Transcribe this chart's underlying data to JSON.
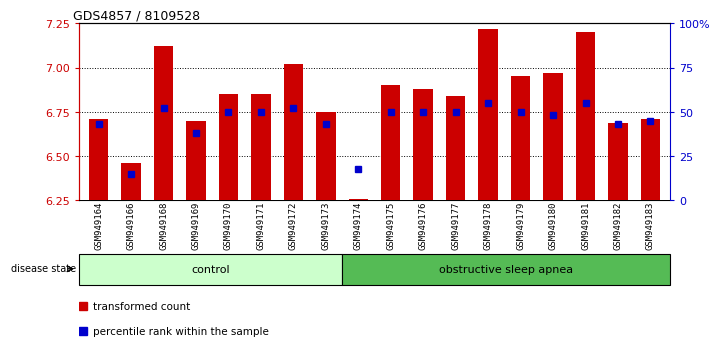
{
  "title": "GDS4857 / 8109528",
  "samples": [
    "GSM949164",
    "GSM949166",
    "GSM949168",
    "GSM949169",
    "GSM949170",
    "GSM949171",
    "GSM949172",
    "GSM949173",
    "GSM949174",
    "GSM949175",
    "GSM949176",
    "GSM949177",
    "GSM949178",
    "GSM949179",
    "GSM949180",
    "GSM949181",
    "GSM949182",
    "GSM949183"
  ],
  "red_values": [
    6.71,
    6.46,
    7.12,
    6.7,
    6.85,
    6.85,
    7.02,
    6.75,
    6.26,
    6.9,
    6.88,
    6.84,
    7.22,
    6.95,
    6.97,
    7.2,
    6.69,
    6.71
  ],
  "blue_percentiles": [
    43,
    15,
    52,
    38,
    50,
    50,
    52,
    43,
    18,
    50,
    50,
    50,
    55,
    50,
    48,
    55,
    43,
    45
  ],
  "ylim_left": [
    6.25,
    7.25
  ],
  "ylim_right": [
    0,
    100
  ],
  "yticks_left": [
    6.25,
    6.5,
    6.75,
    7.0,
    7.25
  ],
  "yticks_right": [
    0,
    25,
    50,
    75,
    100
  ],
  "ytick_labels_right": [
    "0",
    "25",
    "50",
    "75",
    "100%"
  ],
  "control_count": 8,
  "control_label": "control",
  "apnea_label": "obstructive sleep apnea",
  "control_bg": "#ccffcc",
  "apnea_bg": "#55bb55",
  "bar_color": "#cc0000",
  "dot_color": "#0000cc",
  "baseline": 6.25,
  "bar_width": 0.6,
  "legend_red": "transformed count",
  "legend_blue": "percentile rank within the sample"
}
